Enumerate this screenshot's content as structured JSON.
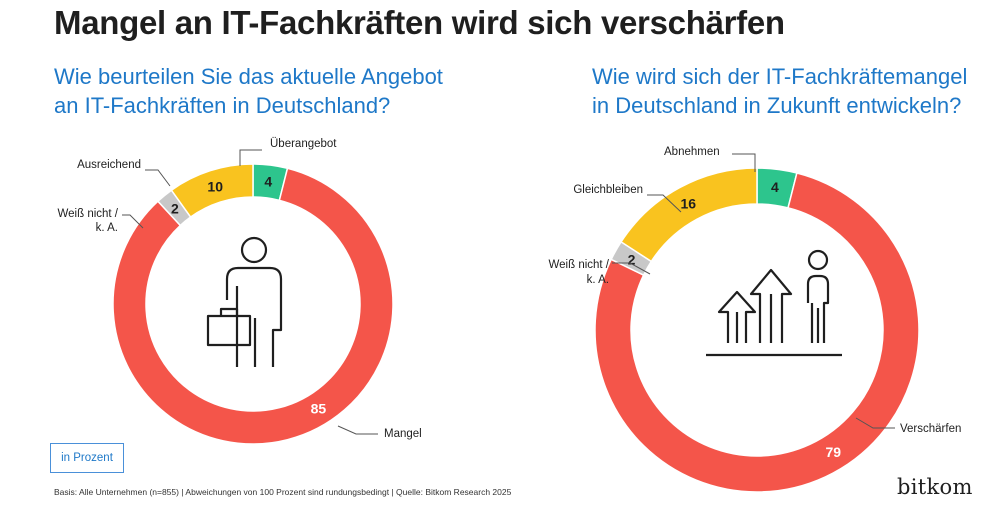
{
  "title": "Mangel an IT-Fachkräften wird sich verschärfen",
  "unit_label": "in Prozent",
  "footer": "Basis: Alle Unternehmen (n=855) | Abweichungen von 100 Prozent sind rundungsbedingt | Quelle: Bitkom Research 2025",
  "logo": "bitkom",
  "colors": {
    "red": "#f4554a",
    "yellow": "#f9c31f",
    "green": "#2dc58d",
    "grey": "#c8c8c8",
    "blue": "#1e78c8"
  },
  "chart_data": [
    {
      "type": "pie",
      "variant": "donut",
      "title_lines": [
        "Wie beurteilen Sie das aktuelle Angebot",
        "an IT-Fachkräften in Deutschland?"
      ],
      "unit": "Prozent",
      "icon": "person-with-briefcase-icon",
      "slices": [
        {
          "label": "Überangebot",
          "value": 4,
          "color": "#2dc58d"
        },
        {
          "label": "Mangel",
          "value": 85,
          "color": "#f4554a"
        },
        {
          "label": "Weiß nicht / k. A.",
          "value": 2,
          "color": "#c8c8c8"
        },
        {
          "label": "Ausreichend",
          "value": 10,
          "color": "#f9c31f"
        }
      ]
    },
    {
      "type": "pie",
      "variant": "donut",
      "title_lines": [
        "Wie wird sich der IT-Fachkräftemangel",
        "in Deutschland in Zukunft entwickeln?"
      ],
      "unit": "Prozent",
      "icon": "growth-arrows-person-icon",
      "slices": [
        {
          "label": "Abnehmen",
          "value": 4,
          "color": "#2dc58d"
        },
        {
          "label": "Verschärfen",
          "value": 79,
          "color": "#f4554a"
        },
        {
          "label": "Weiß nicht / k. A.",
          "value": 2,
          "color": "#c8c8c8"
        },
        {
          "label": "Gleichbleiben",
          "value": 16,
          "color": "#f9c31f"
        }
      ]
    }
  ]
}
